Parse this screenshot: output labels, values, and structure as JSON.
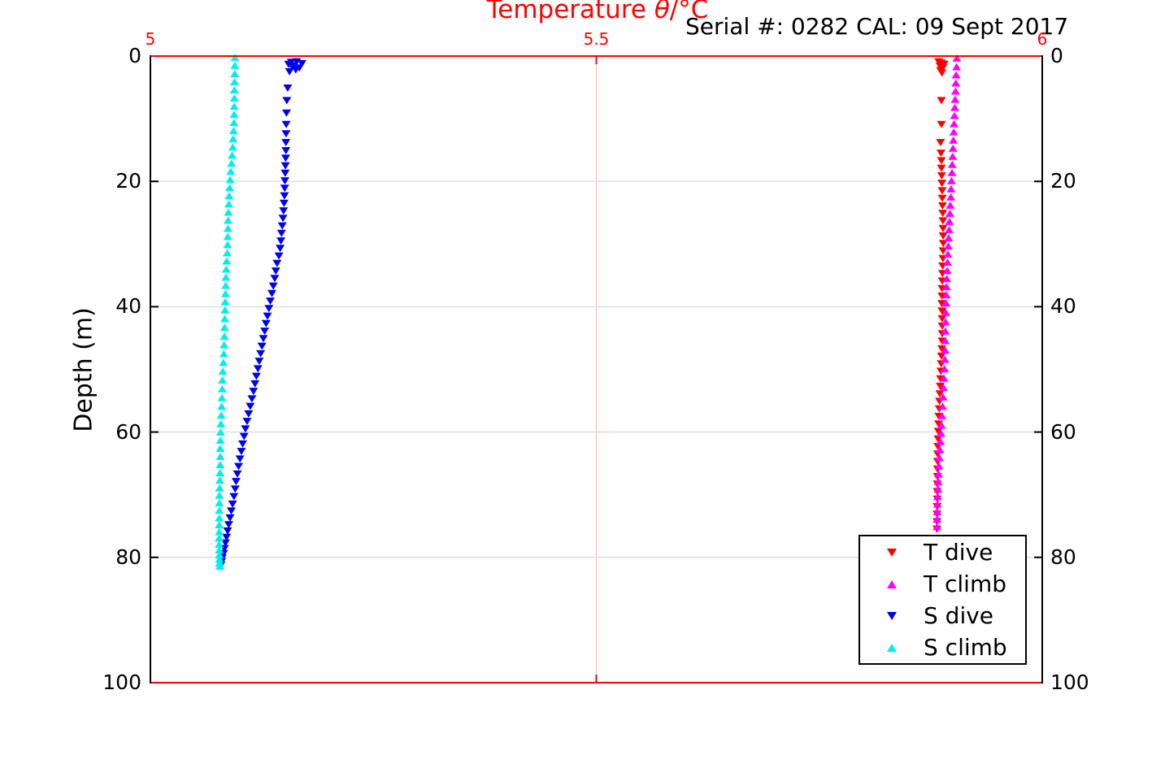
{
  "figure": {
    "top_axis_label": {
      "prefix": "Temperature ",
      "theta": "θ",
      "suffix": "/°C"
    }
  },
  "chart_data": {
    "type": "scatter",
    "title": "Serial #: 0282  CAL: 09 Sept 2017",
    "top_xlabel": "Temperature θ/°C",
    "ylabel": "Depth (m)",
    "x_axis": {
      "side": "top",
      "color": "#ff0000",
      "range": [
        5,
        6
      ],
      "ticks": [
        5,
        5.5,
        6
      ],
      "tick_labels": [
        "5",
        "5.5",
        "6"
      ],
      "grid_ticks": [
        5.5
      ]
    },
    "y_axis": {
      "range": [
        0,
        100
      ],
      "reversed": true,
      "ticks": [
        0,
        20,
        40,
        60,
        80,
        100
      ],
      "tick_labels": [
        "0",
        "20",
        "40",
        "60",
        "80",
        "100"
      ],
      "grid_ticks": [
        20,
        40,
        60,
        80
      ],
      "labels_on_both_sides": true
    },
    "grid": {
      "horizontal_color": "#dcdcdc",
      "vertical_color": "#ffc6c6"
    },
    "legend": {
      "position": "lower_right",
      "entries": [
        {
          "label": "T dive",
          "marker": "triangle-down",
          "color": "#ff0000"
        },
        {
          "label": "T climb",
          "marker": "triangle-up",
          "color": "#ff00ff"
        },
        {
          "label": "S dive",
          "marker": "triangle-down",
          "color": "#0000ee"
        },
        {
          "label": "S climb",
          "marker": "triangle-up",
          "color": "#00eeee"
        }
      ]
    },
    "series": [
      {
        "name": "T dive",
        "color": "#ff0000",
        "marker": "triangle-down",
        "points": [
          [
            5.884,
            0.8
          ],
          [
            5.887,
            1.0
          ],
          [
            5.89,
            1.2
          ],
          [
            5.8855,
            1.5
          ],
          [
            5.8885,
            1.8
          ],
          [
            5.886,
            2.2
          ],
          [
            5.8875,
            2.6
          ],
          [
            5.887,
            7.0
          ],
          [
            5.887,
            10.8
          ],
          [
            5.886,
            13.7
          ],
          [
            5.8865,
            15.4
          ],
          [
            5.887,
            16.6
          ],
          [
            5.887,
            17.8
          ],
          [
            5.8872,
            19.0
          ],
          [
            5.8875,
            20.2
          ],
          [
            5.8878,
            21.4
          ],
          [
            5.888,
            22.6
          ],
          [
            5.8882,
            23.8
          ],
          [
            5.8885,
            25.0
          ],
          [
            5.8887,
            26.2
          ],
          [
            5.8888,
            27.4
          ],
          [
            5.889,
            28.6
          ],
          [
            5.8891,
            29.8
          ],
          [
            5.8889,
            31.0
          ],
          [
            5.8887,
            32.2
          ],
          [
            5.8884,
            33.4
          ],
          [
            5.8882,
            34.6
          ],
          [
            5.888,
            35.8
          ],
          [
            5.8878,
            37.0
          ],
          [
            5.8876,
            38.2
          ],
          [
            5.8875,
            39.4
          ],
          [
            5.8877,
            40.6
          ],
          [
            5.8879,
            41.8
          ],
          [
            5.888,
            43.0
          ],
          [
            5.8879,
            44.2
          ],
          [
            5.8877,
            45.4
          ],
          [
            5.8874,
            46.6
          ],
          [
            5.8871,
            47.8
          ],
          [
            5.8868,
            49.0
          ],
          [
            5.8864,
            50.2
          ],
          [
            5.886,
            51.4
          ],
          [
            5.8856,
            52.6
          ],
          [
            5.8852,
            53.8
          ],
          [
            5.8848,
            55.0
          ],
          [
            5.8845,
            56.2
          ],
          [
            5.8841,
            57.4
          ],
          [
            5.8838,
            58.6
          ],
          [
            5.8835,
            59.8
          ],
          [
            5.8832,
            61.0
          ],
          [
            5.883,
            62.2
          ],
          [
            5.8828,
            63.4
          ],
          [
            5.8827,
            64.6
          ],
          [
            5.8826,
            65.8
          ],
          [
            5.8825,
            67.0
          ],
          [
            5.8824,
            68.2
          ],
          [
            5.8823,
            69.4
          ],
          [
            5.8823,
            70.6
          ],
          [
            5.8822,
            71.8
          ],
          [
            5.8821,
            73.0
          ],
          [
            5.882,
            74.2
          ],
          [
            5.882,
            75.4
          ]
        ]
      },
      {
        "name": "T climb",
        "color": "#ff00ff",
        "marker": "triangle-up",
        "points": [
          [
            5.9043,
            0.4
          ],
          [
            5.904,
            1.8
          ],
          [
            5.9036,
            3.1
          ],
          [
            5.9032,
            4.4
          ],
          [
            5.9028,
            5.7
          ],
          [
            5.9024,
            7.0
          ],
          [
            5.902,
            8.3
          ],
          [
            5.9016,
            9.6
          ],
          [
            5.9012,
            10.9
          ],
          [
            5.9008,
            12.2
          ],
          [
            5.9004,
            13.5
          ],
          [
            5.9,
            14.8
          ],
          [
            5.8996,
            16.1
          ],
          [
            5.8992,
            17.4
          ],
          [
            5.8988,
            18.7
          ],
          [
            5.8984,
            20.0
          ],
          [
            5.8979,
            21.3
          ],
          [
            5.8975,
            22.6
          ],
          [
            5.897,
            23.9
          ],
          [
            5.8965,
            25.2
          ],
          [
            5.896,
            26.5
          ],
          [
            5.8956,
            27.8
          ],
          [
            5.8951,
            29.1
          ],
          [
            5.8947,
            30.4
          ],
          [
            5.8943,
            31.7
          ],
          [
            5.8939,
            33.0
          ],
          [
            5.8935,
            34.3
          ],
          [
            5.8931,
            35.6
          ],
          [
            5.8928,
            36.9
          ],
          [
            5.8925,
            38.2
          ],
          [
            5.8922,
            39.5
          ],
          [
            5.8919,
            41.0
          ],
          [
            5.8917,
            42.5
          ],
          [
            5.8915,
            44.0
          ],
          [
            5.8913,
            45.5
          ],
          [
            5.8911,
            47.0
          ],
          [
            5.8908,
            48.5
          ],
          [
            5.8904,
            50.0
          ],
          [
            5.8899,
            51.5
          ],
          [
            5.8894,
            53.0
          ],
          [
            5.8889,
            54.5
          ],
          [
            5.8883,
            56.0
          ],
          [
            5.8877,
            57.5
          ],
          [
            5.8871,
            59.0
          ],
          [
            5.8865,
            60.3
          ],
          [
            5.8859,
            61.6
          ],
          [
            5.8853,
            62.9
          ],
          [
            5.8848,
            64.2
          ],
          [
            5.8843,
            65.5
          ],
          [
            5.8839,
            66.8
          ],
          [
            5.8835,
            68.0
          ],
          [
            5.8832,
            69.2
          ],
          [
            5.8829,
            70.4
          ],
          [
            5.8826,
            71.6
          ],
          [
            5.8823,
            72.8
          ],
          [
            5.8821,
            74.0
          ],
          [
            5.882,
            75.2
          ]
        ]
      },
      {
        "name": "S dive",
        "color": "#0000ee",
        "marker": "triangle-down",
        "points": [
          [
            5.155,
            1.2
          ],
          [
            5.158,
            0.9
          ],
          [
            5.161,
            1.5
          ],
          [
            5.164,
            0.8
          ],
          [
            5.167,
            1.8
          ],
          [
            5.17,
            1.1
          ],
          [
            5.163,
            2.1
          ],
          [
            5.159,
            1.6
          ],
          [
            5.156,
            2.4
          ],
          [
            5.154,
            5.0
          ],
          [
            5.153,
            7.0
          ],
          [
            5.1526,
            9.0
          ],
          [
            5.1523,
            10.8
          ],
          [
            5.1521,
            12.3
          ],
          [
            5.152,
            13.7
          ],
          [
            5.152,
            15.0
          ],
          [
            5.1517,
            16.2
          ],
          [
            5.1514,
            17.4
          ],
          [
            5.1511,
            18.6
          ],
          [
            5.1509,
            19.8
          ],
          [
            5.1506,
            21.0
          ],
          [
            5.1503,
            22.2
          ],
          [
            5.1499,
            23.4
          ],
          [
            5.1493,
            24.6
          ],
          [
            5.1487,
            25.8
          ],
          [
            5.1479,
            27.0
          ],
          [
            5.147,
            28.2
          ],
          [
            5.1464,
            29.4
          ],
          [
            5.1455,
            30.6
          ],
          [
            5.1441,
            31.8
          ],
          [
            5.142,
            33.0
          ],
          [
            5.1407,
            34.2
          ],
          [
            5.1395,
            35.4
          ],
          [
            5.1378,
            36.6
          ],
          [
            5.1363,
            37.8
          ],
          [
            5.1345,
            39.0
          ],
          [
            5.1329,
            40.2
          ],
          [
            5.1313,
            41.4
          ],
          [
            5.1297,
            42.6
          ],
          [
            5.1282,
            43.8
          ],
          [
            5.1267,
            45.0
          ],
          [
            5.1251,
            46.2
          ],
          [
            5.1236,
            47.4
          ],
          [
            5.1221,
            48.6
          ],
          [
            5.1206,
            49.8
          ],
          [
            5.1189,
            51.0
          ],
          [
            5.1173,
            52.2
          ],
          [
            5.1156,
            53.4
          ],
          [
            5.1139,
            54.6
          ],
          [
            5.1119,
            55.8
          ],
          [
            5.1101,
            57.0
          ],
          [
            5.1084,
            58.2
          ],
          [
            5.1066,
            59.4
          ],
          [
            5.105,
            60.6
          ],
          [
            5.1035,
            61.8
          ],
          [
            5.102,
            63.0
          ],
          [
            5.1005,
            64.2
          ],
          [
            5.0989,
            65.4
          ],
          [
            5.0975,
            66.6
          ],
          [
            5.0961,
            67.8
          ],
          [
            5.0951,
            69.0
          ],
          [
            5.0937,
            70.2
          ],
          [
            5.0922,
            71.4
          ],
          [
            5.0907,
            72.5
          ],
          [
            5.0893,
            73.6
          ],
          [
            5.0879,
            74.7
          ],
          [
            5.0866,
            75.7
          ],
          [
            5.0853,
            76.7
          ],
          [
            5.0841,
            77.6
          ],
          [
            5.083,
            78.5
          ],
          [
            5.082,
            79.3
          ],
          [
            5.0806,
            80.0
          ],
          [
            5.0798,
            80.6
          ],
          [
            5.0791,
            81.1
          ]
        ]
      },
      {
        "name": "S climb",
        "color": "#00eeee",
        "marker": "triangle-up",
        "points": [
          [
            5.0948,
            0.3
          ],
          [
            5.0947,
            1.6
          ],
          [
            5.0946,
            2.9
          ],
          [
            5.0944,
            4.2
          ],
          [
            5.0943,
            5.5
          ],
          [
            5.0942,
            6.8
          ],
          [
            5.0941,
            8.1
          ],
          [
            5.094,
            9.4
          ],
          [
            5.0937,
            10.7
          ],
          [
            5.0933,
            12.0
          ],
          [
            5.0928,
            13.3
          ],
          [
            5.0923,
            14.6
          ],
          [
            5.0917,
            15.9
          ],
          [
            5.091,
            17.2
          ],
          [
            5.0902,
            18.5
          ],
          [
            5.0894,
            19.8
          ],
          [
            5.0889,
            21.1
          ],
          [
            5.0884,
            22.4
          ],
          [
            5.088,
            23.7
          ],
          [
            5.0875,
            25.0
          ],
          [
            5.0872,
            26.3
          ],
          [
            5.087,
            27.6
          ],
          [
            5.0868,
            28.9
          ],
          [
            5.0866,
            30.2
          ],
          [
            5.0861,
            31.5
          ],
          [
            5.0856,
            32.8
          ],
          [
            5.0851,
            34.1
          ],
          [
            5.0847,
            35.4
          ],
          [
            5.0844,
            36.7
          ],
          [
            5.0842,
            38.0
          ],
          [
            5.084,
            39.3
          ],
          [
            5.0838,
            40.6
          ],
          [
            5.0835,
            42.0
          ],
          [
            5.0832,
            43.4
          ],
          [
            5.083,
            44.8
          ],
          [
            5.0827,
            46.2
          ],
          [
            5.0823,
            47.6
          ],
          [
            5.0818,
            49.0
          ],
          [
            5.0812,
            50.4
          ],
          [
            5.0808,
            51.8
          ],
          [
            5.0805,
            53.2
          ],
          [
            5.0803,
            54.6
          ],
          [
            5.0799,
            56.0
          ],
          [
            5.0795,
            57.4
          ],
          [
            5.0791,
            58.8
          ],
          [
            5.0788,
            60.1
          ],
          [
            5.0786,
            61.4
          ],
          [
            5.0784,
            62.7
          ],
          [
            5.0784,
            64.0
          ],
          [
            5.0783,
            65.3
          ],
          [
            5.0781,
            66.6
          ],
          [
            5.0779,
            67.8
          ],
          [
            5.0777,
            69.0
          ],
          [
            5.0775,
            70.2
          ],
          [
            5.0775,
            71.4
          ],
          [
            5.0774,
            72.6
          ],
          [
            5.0773,
            73.8
          ],
          [
            5.0772,
            74.9
          ],
          [
            5.0772,
            76.0
          ],
          [
            5.0771,
            77.0
          ],
          [
            5.0771,
            78.0
          ],
          [
            5.0772,
            78.9
          ],
          [
            5.0773,
            79.7
          ],
          [
            5.0775,
            80.4
          ],
          [
            5.0777,
            81.0
          ],
          [
            5.0779,
            81.5
          ]
        ]
      }
    ]
  }
}
